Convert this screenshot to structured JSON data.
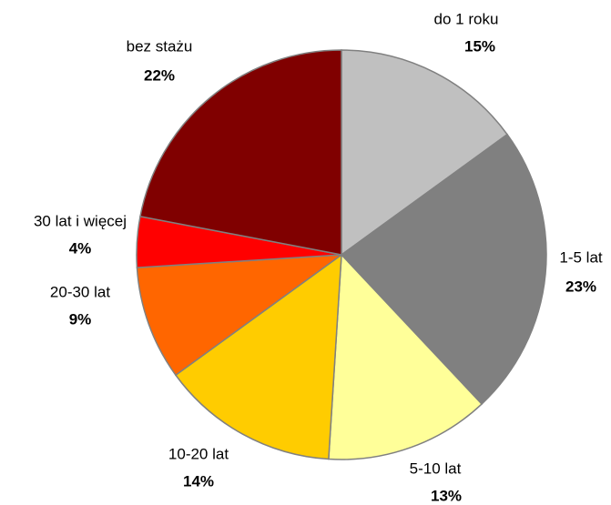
{
  "chart_data": {
    "type": "pie",
    "categories": [
      "do 1 roku",
      "1-5 lat",
      "5-10 lat",
      "10-20 lat",
      "20-30 lat",
      "30 lat i więcej",
      "bez stażu"
    ],
    "values": [
      15,
      23,
      13,
      14,
      9,
      4,
      22
    ],
    "value_labels": [
      "15%",
      "23%",
      "13%",
      "14%",
      "9%",
      "4%",
      "22%"
    ],
    "colors": [
      "#c0c0c0",
      "#808080",
      "#ffff99",
      "#ffcc00",
      "#ff6600",
      "#ff0000",
      "#800000"
    ]
  }
}
